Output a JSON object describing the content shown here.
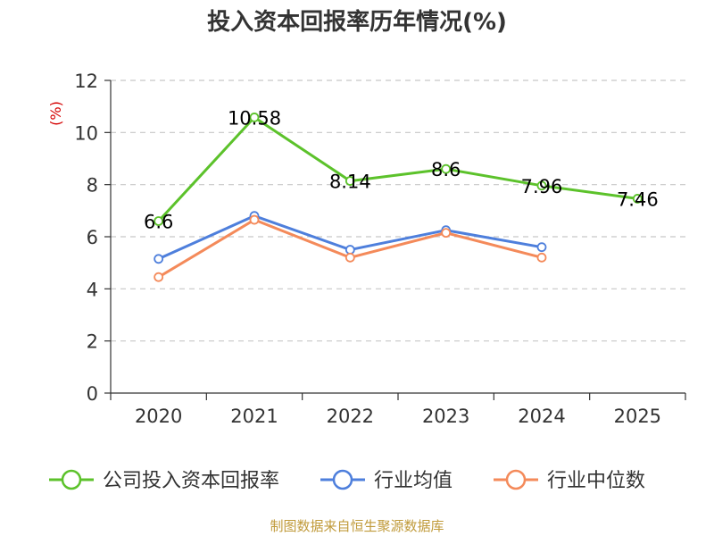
{
  "chart_data": {
    "type": "line",
    "title": "投入资本回报率历年情况(%)",
    "ylabel": "(%)",
    "xlabel": "",
    "categories": [
      "2020",
      "2021",
      "2022",
      "2023",
      "2024",
      "2025"
    ],
    "ylim": [
      0,
      12
    ],
    "yticks": [
      0,
      2,
      4,
      6,
      8,
      10,
      12
    ],
    "grid": true,
    "legend_position": "bottom",
    "series": [
      {
        "name": "公司投入资本回报率",
        "color": "#5cc22b",
        "values": [
          6.6,
          10.58,
          8.14,
          8.6,
          7.96,
          7.46
        ],
        "labels": [
          "6.6",
          "10.58",
          "8.14",
          "8.6",
          "7.96",
          "7.46"
        ]
      },
      {
        "name": "行业均值",
        "color": "#4e7fdc",
        "values": [
          5.15,
          6.8,
          5.5,
          6.25,
          5.6,
          null
        ]
      },
      {
        "name": "行业中位数",
        "color": "#f48a5a",
        "values": [
          4.45,
          6.65,
          5.2,
          6.15,
          5.2,
          null
        ]
      }
    ]
  },
  "source": "制图数据来自恒生聚源数据库"
}
